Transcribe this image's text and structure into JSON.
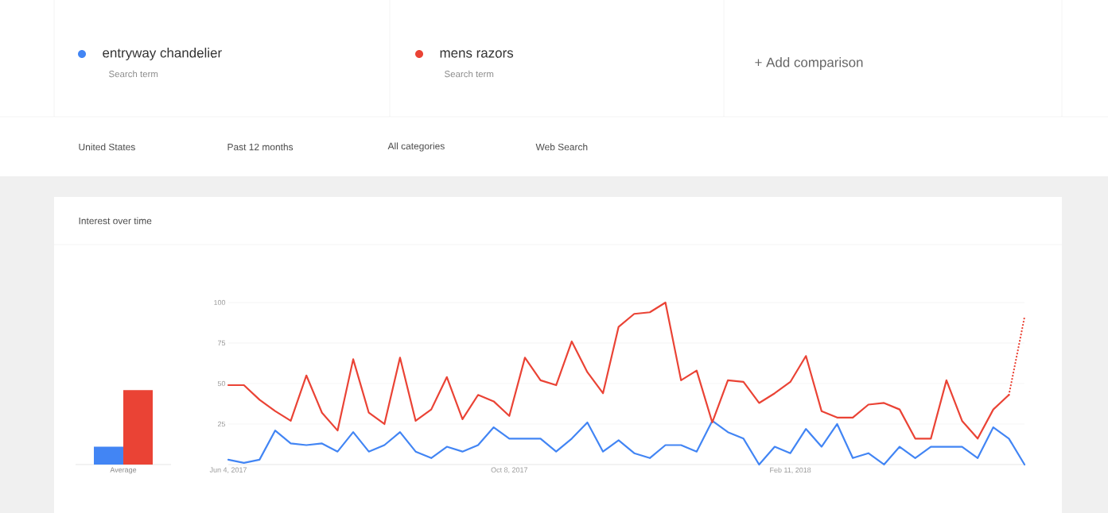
{
  "chart_data": [
    {
      "type": "bar",
      "title": "Interest over time",
      "categories": [
        "Average"
      ],
      "series": [
        {
          "color": "#4285f4",
          "values": [
            11
          ]
        },
        {
          "color": "#ea4335",
          "values": [
            46
          ]
        }
      ],
      "ylim": [
        0,
        100
      ],
      "tick_labels": "x"
    },
    {
      "type": "line",
      "legend": "top",
      "marker": "none",
      "grid": "y",
      "annotations": [
        "Search term",
        "Search term",
        "+ Add comparison",
        "United States",
        "Past 12 months",
        "All categories",
        "Web Search"
      ],
      "xlim": [
        "2017-06-04",
        "2018-05-27"
      ],
      "xticks": [
        {
          "value": "2017-06-04",
          "label": "Jun 4, 2017"
        },
        {
          "value": "2017-10-08",
          "label": "Oct 8, 2017"
        },
        {
          "value": "2018-02-11",
          "label": "Feb 11, 2018"
        }
      ],
      "ylim": [
        0,
        100
      ],
      "yticks": [
        25,
        50,
        75,
        100
      ],
      "x": [
        "2017-06-04",
        "2017-06-11",
        "2017-06-18",
        "2017-06-25",
        "2017-07-02",
        "2017-07-09",
        "2017-07-16",
        "2017-07-23",
        "2017-07-30",
        "2017-08-06",
        "2017-08-13",
        "2017-08-20",
        "2017-08-27",
        "2017-09-03",
        "2017-09-10",
        "2017-09-17",
        "2017-09-24",
        "2017-10-01",
        "2017-10-08",
        "2017-10-15",
        "2017-10-22",
        "2017-10-29",
        "2017-11-05",
        "2017-11-12",
        "2017-11-19",
        "2017-11-26",
        "2017-12-03",
        "2017-12-10",
        "2017-12-17",
        "2017-12-24",
        "2017-12-31",
        "2018-01-07",
        "2018-01-14",
        "2018-01-21",
        "2018-01-28",
        "2018-02-04",
        "2018-02-11",
        "2018-02-18",
        "2018-02-25",
        "2018-03-04",
        "2018-03-11",
        "2018-03-18",
        "2018-03-25",
        "2018-04-01",
        "2018-04-08",
        "2018-04-15",
        "2018-04-22",
        "2018-04-29",
        "2018-05-06",
        "2018-05-13",
        "2018-05-20",
        "2018-05-27"
      ],
      "series": [
        {
          "name": "entryway chandelier",
          "color": "#4285f4",
          "line_style": "solid",
          "values": [
            3,
            1,
            3,
            21,
            13,
            12,
            13,
            8,
            20,
            8,
            12,
            20,
            8,
            4,
            11,
            8,
            12,
            23,
            16,
            16,
            16,
            8,
            16,
            26,
            8,
            15,
            7,
            4,
            12,
            12,
            8,
            27,
            20,
            16,
            0,
            11,
            7,
            22,
            11,
            25,
            4,
            7,
            0,
            11,
            4,
            11,
            11,
            11,
            4,
            23,
            16,
            0
          ]
        },
        {
          "name": "mens razors",
          "color": "#ea4335",
          "line_style": "solid",
          "values": [
            49,
            49,
            40,
            33,
            27,
            55,
            32,
            21,
            65,
            32,
            25,
            66,
            27,
            34,
            54,
            28,
            43,
            39,
            30,
            66,
            52,
            49,
            76,
            57,
            44,
            85,
            93,
            94,
            100,
            52,
            58,
            26,
            52,
            51,
            38,
            44,
            51,
            67,
            33,
            29,
            29,
            37,
            38,
            34,
            16,
            16,
            52,
            27,
            16,
            34,
            43,
            null
          ]
        },
        {
          "color": "#ea4335",
          "line_style": "dotted",
          "values": [
            null,
            null,
            null,
            null,
            null,
            null,
            null,
            null,
            null,
            null,
            null,
            null,
            null,
            null,
            null,
            null,
            null,
            null,
            null,
            null,
            null,
            null,
            null,
            null,
            null,
            null,
            null,
            null,
            null,
            null,
            null,
            null,
            null,
            null,
            null,
            null,
            null,
            null,
            null,
            null,
            null,
            null,
            null,
            null,
            null,
            null,
            null,
            null,
            null,
            null,
            43,
            91
          ]
        }
      ]
    }
  ]
}
